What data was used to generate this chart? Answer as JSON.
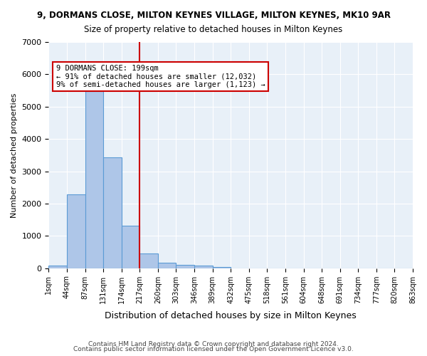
{
  "title_line1": "9, DORMANS CLOSE, MILTON KEYNES VILLAGE, MILTON KEYNES, MK10 9AR",
  "title_line2": "Size of property relative to detached houses in Milton Keynes",
  "xlabel": "Distribution of detached houses by size in Milton Keynes",
  "ylabel": "Number of detached properties",
  "bin_labels": [
    "1sqm",
    "44sqm",
    "87sqm",
    "131sqm",
    "174sqm",
    "217sqm",
    "260sqm",
    "303sqm",
    "346sqm",
    "389sqm",
    "432sqm",
    "475sqm",
    "518sqm",
    "561sqm",
    "604sqm",
    "648sqm",
    "691sqm",
    "734sqm",
    "777sqm",
    "820sqm",
    "863sqm"
  ],
  "bar_heights": [
    80,
    2280,
    5470,
    3440,
    1310,
    460,
    160,
    110,
    70,
    40,
    0,
    0,
    0,
    0,
    0,
    0,
    0,
    0,
    0,
    0
  ],
  "bar_color": "#aec6e8",
  "bar_edge_color": "#5b9bd5",
  "vline_x": 4.5,
  "vline_color": "#cc0000",
  "annotation_text": "9 DORMANS CLOSE: 199sqm\n← 91% of detached houses are smaller (12,032)\n9% of semi-detached houses are larger (1,123) →",
  "annotation_box_color": "#cc0000",
  "ylim": [
    0,
    7000
  ],
  "yticks": [
    0,
    1000,
    2000,
    3000,
    4000,
    5000,
    6000,
    7000
  ],
  "background_color": "#e8f0f8",
  "grid_color": "#ffffff",
  "footer_line1": "Contains HM Land Registry data © Crown copyright and database right 2024.",
  "footer_line2": "Contains public sector information licensed under the Open Government Licence v3.0."
}
